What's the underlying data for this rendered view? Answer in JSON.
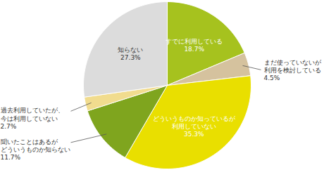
{
  "chart_data": {
    "type": "pie",
    "categories": [
      "すでに利用している",
      "まだ使っていないが\n利用を検討している",
      "どういうものか知っているが\n利用していない",
      "聞いたことはあるが\nどういうものか知らない",
      "過去利用していたが、\n今は利用していない",
      "知らない"
    ],
    "values": [
      18.7,
      4.5,
      35.3,
      11.7,
      2.7,
      27.3
    ],
    "value_labels": [
      "18.7%",
      "4.5%",
      "35.3%",
      "11.7%",
      "2.7%",
      "27.3%"
    ],
    "colors": [
      "#a6c21e",
      "#d5c29e",
      "#e9df00",
      "#7fa51e",
      "#f1dc8e",
      "#dcdcdc"
    ],
    "data_labels": true
  }
}
